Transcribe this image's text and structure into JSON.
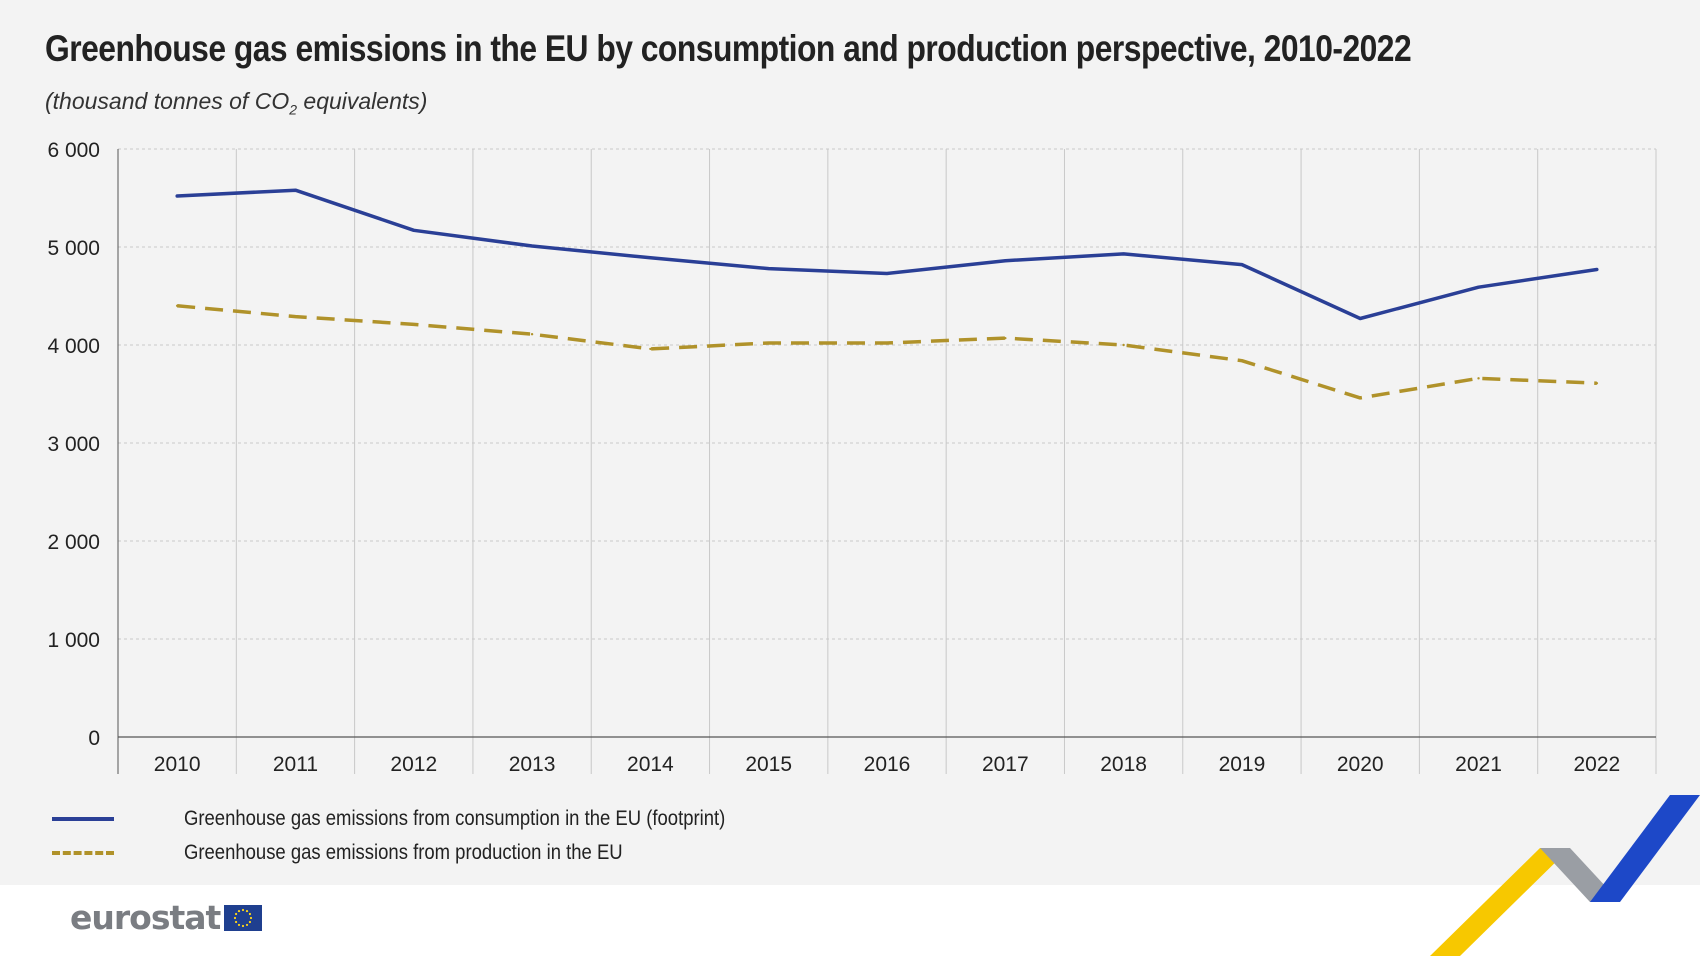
{
  "header": {
    "title": "Greenhouse gas emissions in the EU by consumption and production perspective, 2010-2022",
    "subtitle_pre": "(thousand tonnes of CO",
    "subtitle_sub": "2",
    "subtitle_post": " equivalents)"
  },
  "colors": {
    "consumption": "#2a3f96",
    "production": "#b0922a",
    "grid": "#c8c8c8",
    "logo_text": "#7a7d82",
    "eu_flag": "#1f3f8f",
    "eu_star": "#ffd617"
  },
  "chart_data": {
    "type": "line",
    "title": "Greenhouse gas emissions in the EU by consumption and production perspective, 2010-2022",
    "subtitle": "(thousand tonnes of CO2 equivalents)",
    "x": [
      "2010",
      "2011",
      "2012",
      "2013",
      "2014",
      "2015",
      "2016",
      "2017",
      "2018",
      "2019",
      "2020",
      "2021",
      "2022"
    ],
    "ylim": [
      0,
      6000
    ],
    "yticks": [
      0,
      1000,
      2000,
      3000,
      4000,
      5000,
      6000
    ],
    "ytick_labels": [
      "0",
      "1 000",
      "2 000",
      "3 000",
      "4 000",
      "5 000",
      "6 000"
    ],
    "grid": true,
    "legend_position": "bottom-left",
    "series": [
      {
        "name": "Greenhouse gas emissions from consumption in the EU (footprint)",
        "style": "solid",
        "values": [
          5520,
          5580,
          5170,
          5010,
          4890,
          4780,
          4730,
          4860,
          4930,
          4820,
          4270,
          4590,
          4770
        ]
      },
      {
        "name": "Greenhouse gas emissions from production in the EU",
        "style": "dashed",
        "values": [
          4400,
          4290,
          4210,
          4110,
          3960,
          4020,
          4020,
          4070,
          4000,
          3840,
          3460,
          3660,
          3610
        ]
      }
    ]
  },
  "footer": {
    "logo_text": "eurostat",
    "eu_flag_icon": "eu-flag-icon"
  }
}
